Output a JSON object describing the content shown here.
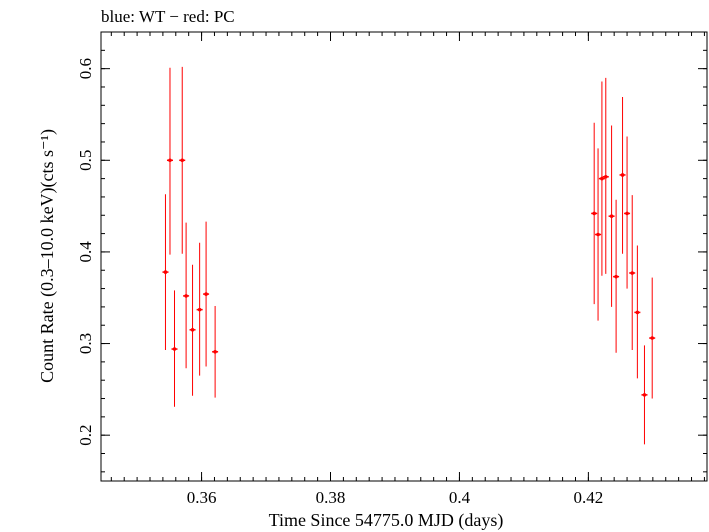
{
  "chart_data": {
    "type": "scatter",
    "title": "blue: WT − red: PC",
    "xlabel": "Time Since 54775.0 MJD (days)",
    "ylabel": "Count Rate (0.3–10.0 keV)(cts s⁻¹)",
    "xlim": [
      0.3444,
      0.4384
    ],
    "ylim": [
      0.15,
      0.64
    ],
    "x_ticks": [
      0.36,
      0.38,
      0.4,
      0.42
    ],
    "x_tick_labels": [
      "0.36",
      "0.38",
      "0.4",
      "0.42"
    ],
    "y_ticks": [
      0.2,
      0.3,
      0.4,
      0.5,
      0.6
    ],
    "y_tick_labels": [
      "0.2",
      "0.3",
      "0.4",
      "0.5",
      "0.6"
    ],
    "grid": false,
    "legend": "none",
    "series": [
      {
        "color": "#ff0000",
        "points": [
          {
            "x": 0.3544,
            "y": 0.378,
            "ylo": 0.293,
            "yhi": 0.463
          },
          {
            "x": 0.3551,
            "y": 0.5,
            "ylo": 0.397,
            "yhi": 0.601
          },
          {
            "x": 0.3558,
            "y": 0.294,
            "ylo": 0.231,
            "yhi": 0.358
          },
          {
            "x": 0.357,
            "y": 0.5,
            "ylo": 0.398,
            "yhi": 0.602
          },
          {
            "x": 0.3576,
            "y": 0.352,
            "ylo": 0.273,
            "yhi": 0.432
          },
          {
            "x": 0.3586,
            "y": 0.315,
            "ylo": 0.243,
            "yhi": 0.386
          },
          {
            "x": 0.3597,
            "y": 0.337,
            "ylo": 0.265,
            "yhi": 0.41
          },
          {
            "x": 0.3607,
            "y": 0.354,
            "ylo": 0.275,
            "yhi": 0.433
          },
          {
            "x": 0.3621,
            "y": 0.291,
            "ylo": 0.241,
            "yhi": 0.341
          },
          {
            "x": 0.4209,
            "y": 0.442,
            "ylo": 0.343,
            "yhi": 0.541
          },
          {
            "x": 0.4215,
            "y": 0.419,
            "ylo": 0.325,
            "yhi": 0.513
          },
          {
            "x": 0.4221,
            "y": 0.48,
            "ylo": 0.374,
            "yhi": 0.586
          },
          {
            "x": 0.4227,
            "y": 0.482,
            "ylo": 0.376,
            "yhi": 0.59
          },
          {
            "x": 0.4236,
            "y": 0.439,
            "ylo": 0.34,
            "yhi": 0.538
          },
          {
            "x": 0.4243,
            "y": 0.373,
            "ylo": 0.29,
            "yhi": 0.457
          },
          {
            "x": 0.4253,
            "y": 0.484,
            "ylo": 0.398,
            "yhi": 0.569
          },
          {
            "x": 0.426,
            "y": 0.442,
            "ylo": 0.36,
            "yhi": 0.526
          },
          {
            "x": 0.4268,
            "y": 0.377,
            "ylo": 0.293,
            "yhi": 0.462
          },
          {
            "x": 0.4276,
            "y": 0.334,
            "ylo": 0.262,
            "yhi": 0.407
          },
          {
            "x": 0.4287,
            "y": 0.244,
            "ylo": 0.19,
            "yhi": 0.298
          },
          {
            "x": 0.4299,
            "y": 0.306,
            "ylo": 0.24,
            "yhi": 0.372
          }
        ]
      }
    ]
  }
}
